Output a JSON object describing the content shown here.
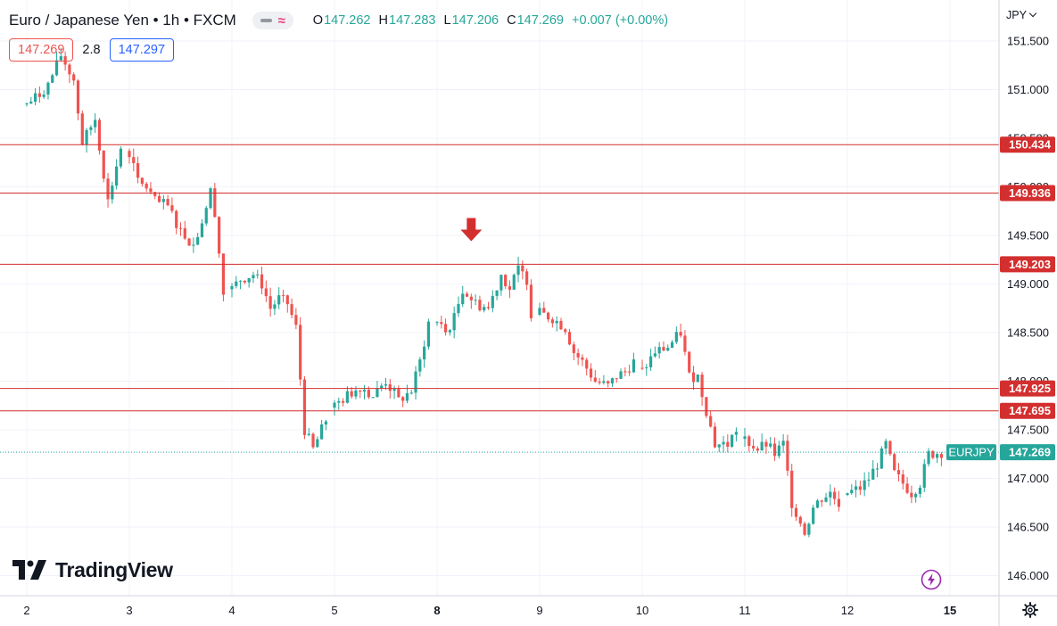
{
  "header": {
    "title": "Euro / Japanese Yen • 1h • FXCM",
    "ohlc": {
      "o_label": "O",
      "o": "147.262",
      "h_label": "H",
      "h": "147.283",
      "l_label": "L",
      "l": "147.206",
      "c_label": "C",
      "c": "147.269",
      "change": "+0.007 (+0.00%)"
    }
  },
  "quote": {
    "bid": "147.269",
    "spread": "2.8",
    "ask": "147.297"
  },
  "currency_label": "JPY",
  "brand": "TradingView",
  "colors": {
    "up": "#26a69a",
    "down": "#ef5350",
    "level_line": "#d32f2f",
    "arrow": "#d32f2f",
    "ask": "#2962ff"
  },
  "icons": {
    "bolt": "bolt-icon",
    "gear": "gear-icon"
  },
  "chart_data": {
    "type": "candlestick",
    "symbol": "EURJPY",
    "interval": "1h",
    "ylim": [
      145.8,
      151.9
    ],
    "y_ticks": [
      "151.500",
      "151.000",
      "150.500",
      "150.000",
      "149.500",
      "149.000",
      "148.500",
      "148.000",
      "147.500",
      "147.000",
      "146.500",
      "146.000"
    ],
    "x_ticks": [
      "2",
      "3",
      "4",
      "5",
      "8",
      "9",
      "10",
      "11",
      "12",
      "15"
    ],
    "x_tick_bold": [
      "8",
      "15"
    ],
    "last_price": 147.269,
    "last_price_label": "147.269",
    "symbol_tag": "EURJPY",
    "levels": [
      {
        "value": 150.434,
        "label": "150.434"
      },
      {
        "value": 149.936,
        "label": "149.936"
      },
      {
        "value": 149.203,
        "label": "149.203"
      },
      {
        "value": 147.925,
        "label": "147.925"
      },
      {
        "value": 147.695,
        "label": "147.695"
      }
    ],
    "arrow_annotation": {
      "session": "8",
      "offset_hours": 8,
      "price": 149.44,
      "direction": "down"
    },
    "sessions": [
      {
        "label": "2",
        "anchors": [
          [
            0,
            150.85
          ],
          [
            3,
            150.95
          ],
          [
            5,
            151.05
          ],
          [
            8,
            151.35
          ],
          [
            11,
            151.1
          ],
          [
            13,
            150.45
          ],
          [
            16,
            150.7
          ],
          [
            19,
            149.85
          ],
          [
            22,
            150.4
          ]
        ]
      },
      {
        "label": "3",
        "anchors": [
          [
            0,
            150.35
          ],
          [
            2,
            150.05
          ],
          [
            4,
            150.0
          ],
          [
            6,
            149.85
          ],
          [
            9,
            149.8
          ],
          [
            12,
            149.55
          ],
          [
            15,
            149.4
          ],
          [
            17,
            149.65
          ],
          [
            19,
            149.95
          ],
          [
            20,
            149.75
          ],
          [
            22,
            148.9
          ]
        ]
      },
      {
        "label": "4",
        "anchors": [
          [
            0,
            148.95
          ],
          [
            2,
            149.05
          ],
          [
            5,
            149.1
          ],
          [
            7,
            149.0
          ],
          [
            9,
            148.75
          ],
          [
            11,
            148.85
          ],
          [
            13,
            148.8
          ],
          [
            15,
            148.55
          ],
          [
            17,
            147.5
          ],
          [
            19,
            147.3
          ],
          [
            22,
            147.6
          ]
        ]
      },
      {
        "label": "5",
        "anchors": [
          [
            0,
            147.75
          ],
          [
            3,
            147.85
          ],
          [
            6,
            147.95
          ],
          [
            9,
            147.85
          ],
          [
            12,
            148.0
          ],
          [
            15,
            147.8
          ],
          [
            18,
            147.9
          ],
          [
            20,
            148.2
          ],
          [
            22,
            148.6
          ]
        ]
      },
      {
        "label": "8",
        "anchors": [
          [
            0,
            148.6
          ],
          [
            2,
            148.5
          ],
          [
            4,
            148.65
          ],
          [
            6,
            148.95
          ],
          [
            9,
            148.8
          ],
          [
            12,
            148.75
          ],
          [
            15,
            149.1
          ],
          [
            17,
            148.95
          ],
          [
            19,
            149.15
          ],
          [
            21,
            149.05
          ],
          [
            22,
            148.7
          ]
        ]
      },
      {
        "label": "9",
        "anchors": [
          [
            0,
            148.7
          ],
          [
            3,
            148.65
          ],
          [
            6,
            148.55
          ],
          [
            8,
            148.3
          ],
          [
            10,
            148.2
          ],
          [
            13,
            148.0
          ],
          [
            16,
            147.95
          ],
          [
            18,
            148.05
          ],
          [
            20,
            148.1
          ],
          [
            22,
            148.2
          ]
        ]
      },
      {
        "label": "10",
        "anchors": [
          [
            0,
            148.1
          ],
          [
            3,
            148.3
          ],
          [
            6,
            148.35
          ],
          [
            9,
            148.5
          ],
          [
            11,
            148.05
          ],
          [
            13,
            148.05
          ],
          [
            15,
            147.7
          ],
          [
            17,
            147.35
          ],
          [
            20,
            147.35
          ],
          [
            22,
            147.5
          ]
        ]
      },
      {
        "label": "11",
        "anchors": [
          [
            0,
            147.4
          ],
          [
            3,
            147.3
          ],
          [
            5,
            147.35
          ],
          [
            7,
            147.25
          ],
          [
            9,
            147.35
          ],
          [
            11,
            146.75
          ],
          [
            14,
            146.45
          ],
          [
            16,
            146.7
          ],
          [
            18,
            146.8
          ],
          [
            20,
            146.85
          ],
          [
            22,
            146.75
          ]
        ]
      },
      {
        "label": "12",
        "anchors": [
          [
            0,
            146.85
          ],
          [
            3,
            146.9
          ],
          [
            5,
            147.0
          ],
          [
            7,
            147.15
          ],
          [
            9,
            147.35
          ],
          [
            11,
            147.05
          ],
          [
            13,
            146.95
          ],
          [
            15,
            146.85
          ],
          [
            17,
            146.95
          ],
          [
            19,
            147.25
          ],
          [
            22,
            147.27
          ]
        ]
      }
    ]
  }
}
